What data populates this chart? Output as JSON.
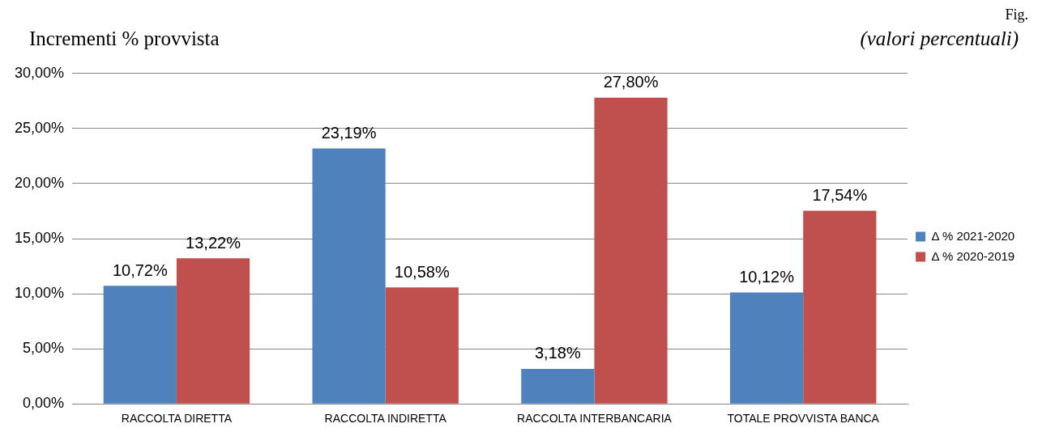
{
  "chart_data": {
    "type": "bar",
    "title": "Incrementi % provvista",
    "subtitle": "(valori percentuali)",
    "annotations": [
      "Fig."
    ],
    "categories": [
      "RACCOLTA DIRETTA",
      "RACCOLTA INDIRETTA",
      "RACCOLTA INTERBANCARIA",
      "TOTALE PROVVISTA BANCA"
    ],
    "series": [
      {
        "name": "Δ % 2021-2020",
        "color": "#4f81bd",
        "values": [
          10.72,
          23.19,
          3.18,
          10.12
        ],
        "value_labels": [
          "10,72%",
          "23,19%",
          "3,18%",
          "10,12%"
        ]
      },
      {
        "name": "Δ % 2020-2019",
        "color": "#c0504d",
        "values": [
          13.22,
          10.58,
          27.8,
          17.54
        ],
        "value_labels": [
          "13,22%",
          "10,58%",
          "27,80%",
          "17,54%"
        ]
      }
    ],
    "ylim": [
      0,
      30
    ],
    "yticks": [
      {
        "value": 0,
        "label": "0,00%"
      },
      {
        "value": 5,
        "label": "5,00%"
      },
      {
        "value": 10,
        "label": "10,00%"
      },
      {
        "value": 15,
        "label": "15,00%"
      },
      {
        "value": 20,
        "label": "20,00%"
      },
      {
        "value": 25,
        "label": "25,00%"
      },
      {
        "value": 30,
        "label": "30,00%"
      }
    ],
    "grid": "y",
    "legend": "right"
  }
}
